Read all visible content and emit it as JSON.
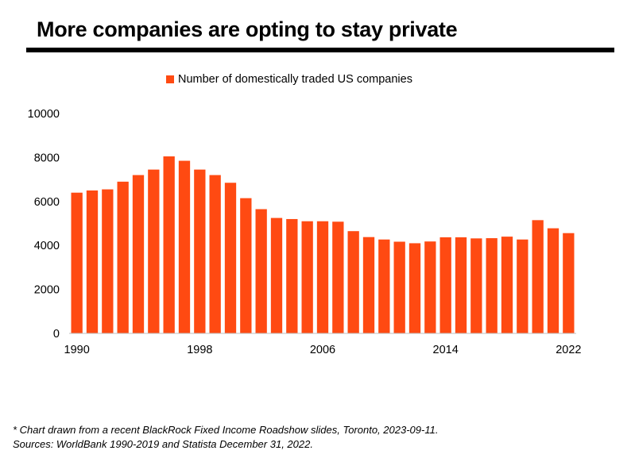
{
  "title": "More companies are opting to stay private",
  "legend": {
    "label": "Number of domestically traded US companies"
  },
  "colors": {
    "bar": "#ff4a12",
    "rule": "#000000",
    "axis": "#bfbfbf"
  },
  "footnote": {
    "line1": "* Chart drawn from a recent BlackRock Fixed Income Roadshow slides, Toronto, 2023-09-11.",
    "line2": "Sources: WorldBank 1990-2019 and Statista December 31, 2022."
  },
  "chart_data": {
    "type": "bar",
    "title": "More companies are opting to stay private",
    "xlabel": "",
    "ylabel": "",
    "ylim": [
      0,
      10000
    ],
    "yticks": [
      0,
      2000,
      4000,
      6000,
      8000,
      10000
    ],
    "xtick_labels": [
      "1990",
      "1998",
      "2006",
      "2014",
      "2022"
    ],
    "grid": false,
    "legend_position": "top",
    "categories": [
      "1990",
      "1991",
      "1992",
      "1993",
      "1994",
      "1995",
      "1996",
      "1997",
      "1998",
      "1999",
      "2000",
      "2001",
      "2002",
      "2003",
      "2004",
      "2005",
      "2006",
      "2007",
      "2008",
      "2009",
      "2010",
      "2011",
      "2012",
      "2013",
      "2014",
      "2015",
      "2016",
      "2017",
      "2018",
      "2019",
      "2020",
      "2021",
      "2022"
    ],
    "series": [
      {
        "name": "Number of domestically traded US companies",
        "values": [
          6400,
          6500,
          6550,
          6900,
          7200,
          7450,
          8050,
          7850,
          7450,
          7200,
          6850,
          6150,
          5650,
          5250,
          5200,
          5100,
          5100,
          5080,
          4650,
          4380,
          4270,
          4170,
          4100,
          4180,
          4370,
          4370,
          4320,
          4330,
          4400,
          4270,
          5150,
          4780,
          4560
        ]
      }
    ]
  }
}
